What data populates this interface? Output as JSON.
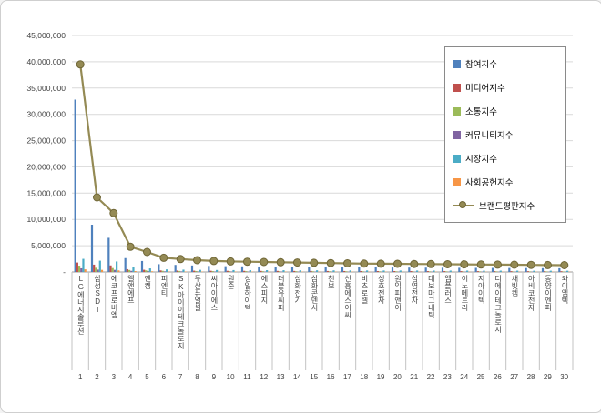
{
  "figure": {
    "background": "#ffffff",
    "border_color": "#cfcfcf",
    "gridline_color": "#d9d9d9",
    "axis_line_color": "#9b9b9b",
    "divider_color": "#c3c3c3",
    "axis_text_color": "#404040"
  },
  "y_axis": {
    "tick_labels": [
      "45,000,000",
      "40,000,000",
      "35,000,000",
      "30,000,000",
      "25,000,000",
      "20,000,000",
      "15,000,000",
      "10,000,000",
      "5,000,000",
      "-"
    ]
  },
  "chart_data": {
    "type": "bar",
    "subtype": "clustered bars with overlaid line (brand reputation index)",
    "title": "",
    "xlabel": "",
    "ylabel": "",
    "ylim": [
      0,
      45000000
    ],
    "ytick_step": 5000000,
    "grid": true,
    "legend_position": "upper right",
    "categories": [
      "LG에너지솔루션",
      "삼성SDI",
      "에코프로비엠",
      "엘앤에프",
      "엔켐",
      "피엔티",
      "SK아이이테크놀로지",
      "두산퓨얼셀",
      "씨아이에스",
      "원준",
      "성일하이텍",
      "에스피지",
      "더블유씨피",
      "삼화전기",
      "삼화콘덴서",
      "천보",
      "신흥에스이씨",
      "비츠로셀",
      "성호전자",
      "원익피앤이",
      "삼영전자",
      "대보마그네틱",
      "엠플러스",
      "이노메트리",
      "지아이텍",
      "디에이테크놀로지",
      "새빗켐",
      "아비코전자",
      "동양이엔피",
      "와이엠텍"
    ],
    "category_numbers": [
      "1",
      "2",
      "3",
      "4",
      "5",
      "6",
      "7",
      "8",
      "9",
      "10",
      "11",
      "12",
      "13",
      "14",
      "15",
      "16",
      "17",
      "18",
      "19",
      "20",
      "21",
      "22",
      "23",
      "24",
      "25",
      "26",
      "27",
      "28",
      "29",
      "30"
    ],
    "bar_series": [
      {
        "name": "참여지수",
        "color": "#4F81BD",
        "values": [
          32800000,
          9000000,
          6500000,
          2640000,
          2090000,
          1485000,
          1348000,
          1238000,
          1155000,
          1100000,
          1072000,
          1045000,
          1017000,
          990000,
          962000,
          935000,
          908000,
          880000,
          869000,
          852000,
          836000,
          825000,
          808000,
          798000,
          781000,
          770000,
          759000,
          742000,
          726000,
          715000
        ]
      },
      {
        "name": "미디어지수",
        "color": "#C0504D",
        "values": [
          1800000,
          1400000,
          1250000,
          528000,
          418000,
          297000,
          270000,
          248000,
          231000,
          220000,
          215000,
          209000,
          204000,
          198000,
          193000,
          187000,
          181000,
          176000,
          174000,
          171000,
          167000,
          165000,
          162000,
          159000,
          156000,
          154000,
          152000,
          149000,
          145000,
          143000
        ]
      },
      {
        "name": "소통지수",
        "color": "#9BBB59",
        "values": [
          1200000,
          800000,
          750000,
          384000,
          304000,
          216000,
          196000,
          180000,
          168000,
          160000,
          156000,
          152000,
          148000,
          144000,
          140000,
          136000,
          132000,
          128000,
          126000,
          124000,
          122000,
          120000,
          118000,
          116000,
          114000,
          112000,
          110000,
          108000,
          106000,
          104000
        ]
      },
      {
        "name": "커뮤니티지수",
        "color": "#8064A2",
        "values": [
          700000,
          450000,
          400000,
          216000,
          171000,
          121000,
          110000,
          101000,
          95000,
          90000,
          88000,
          86000,
          83000,
          81000,
          79000,
          77000,
          74000,
          72000,
          71000,
          70000,
          68000,
          67000,
          66000,
          65000,
          64000,
          63000,
          62000,
          61000,
          59000,
          59000
        ]
      },
      {
        "name": "시장지수",
        "color": "#4BACC6",
        "values": [
          2500000,
          2150000,
          2000000,
          864000,
          684000,
          486000,
          441000,
          405000,
          378000,
          360000,
          351000,
          342000,
          333000,
          324000,
          315000,
          306000,
          297000,
          288000,
          284000,
          279000,
          274000,
          270000,
          265000,
          261000,
          256000,
          252000,
          248000,
          243000,
          238000,
          234000
        ]
      },
      {
        "name": "사회공헌지수",
        "color": "#F79646",
        "values": [
          500000,
          400000,
          300000,
          168000,
          133000,
          95000,
          85000,
          78000,
          73000,
          70000,
          68000,
          66000,
          65000,
          63000,
          61000,
          59000,
          58000,
          56000,
          56000,
          54000,
          53000,
          53000,
          51000,
          51000,
          49000,
          49000,
          49000,
          47000,
          46000,
          45000
        ]
      }
    ],
    "line_series": {
      "name": "브랜드평판지수",
      "color": "#948A54",
      "marker": "circle",
      "marker_outline": "#6F6636",
      "values": [
        39500000,
        14200000,
        11200000,
        4800000,
        3800000,
        2700000,
        2450000,
        2250000,
        2100000,
        2000000,
        1950000,
        1900000,
        1850000,
        1800000,
        1750000,
        1700000,
        1650000,
        1600000,
        1580000,
        1550000,
        1520000,
        1500000,
        1470000,
        1450000,
        1420000,
        1400000,
        1380000,
        1350000,
        1320000,
        1300000
      ]
    }
  }
}
